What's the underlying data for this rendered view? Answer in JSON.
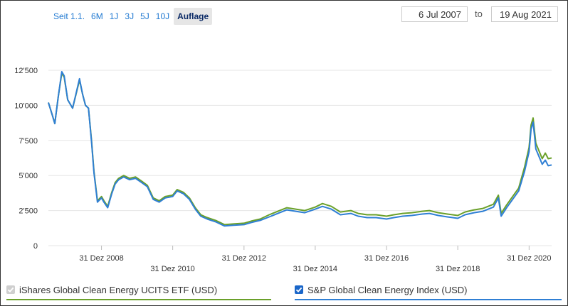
{
  "range_buttons": [
    "Seit 1.1.",
    "6M",
    "1J",
    "3J",
    "5J",
    "10J",
    "Auflage"
  ],
  "date_from": "6 Jul 2007",
  "date_sep": "to",
  "date_to": "19 Aug 2021",
  "legend": {
    "item1": "iShares Global Clean Energy UCITS ETF (USD)",
    "item2": "S&P Global Clean Energy Index (USD)"
  },
  "colors": {
    "series1": "#6aa02a",
    "series2": "#2f7fd4",
    "grid": "#e6e6e6"
  },
  "chart_data": {
    "type": "line",
    "y_ticks": [
      "0",
      "2'500",
      "5'000",
      "7'500",
      "10'000",
      "12'500"
    ],
    "y_tick_values": [
      0,
      2500,
      5000,
      7500,
      10000,
      12500
    ],
    "ylim": [
      0,
      12500
    ],
    "x_tick_labels": [
      "31 Dez 2008",
      "31 Dez 2010",
      "31 Dez 2012",
      "31 Dez 2014",
      "31 Dez 2016",
      "31 Dez 2018",
      "31 Dez 2020"
    ],
    "x_tick_dates": [
      "2008-12-31",
      "2010-12-31",
      "2012-12-31",
      "2014-12-31",
      "2016-12-31",
      "2018-12-31",
      "2020-12-31"
    ],
    "x_range": [
      "2007-07-06",
      "2021-08-19"
    ],
    "grid": true,
    "series": [
      {
        "name": "iShares Global Clean Energy UCITS ETF (USD)",
        "color": "#6aa02a",
        "points": [
          [
            "2007-07-06",
            10200
          ],
          [
            "2007-08-15",
            9300
          ],
          [
            "2007-09-10",
            8700
          ],
          [
            "2007-10-15",
            10600
          ],
          [
            "2007-11-20",
            12300
          ],
          [
            "2007-12-15",
            12000
          ],
          [
            "2008-01-20",
            10400
          ],
          [
            "2008-03-10",
            9800
          ],
          [
            "2008-05-20",
            11800
          ],
          [
            "2008-06-20",
            10800
          ],
          [
            "2008-07-20",
            10000
          ],
          [
            "2008-08-20",
            9800
          ],
          [
            "2008-09-20",
            7500
          ],
          [
            "2008-10-15",
            5300
          ],
          [
            "2008-11-20",
            3200
          ],
          [
            "2008-12-31",
            3500
          ],
          [
            "2009-01-25",
            3200
          ],
          [
            "2009-03-05",
            2800
          ],
          [
            "2009-04-15",
            3800
          ],
          [
            "2009-05-20",
            4500
          ],
          [
            "2009-06-25",
            4800
          ],
          [
            "2009-08-15",
            5000
          ],
          [
            "2009-10-15",
            4800
          ],
          [
            "2009-12-15",
            4900
          ],
          [
            "2010-02-15",
            4600
          ],
          [
            "2010-04-15",
            4300
          ],
          [
            "2010-06-15",
            3400
          ],
          [
            "2010-08-15",
            3200
          ],
          [
            "2010-10-15",
            3500
          ],
          [
            "2010-12-31",
            3600
          ],
          [
            "2011-02-15",
            4000
          ],
          [
            "2011-04-20",
            3800
          ],
          [
            "2011-06-20",
            3400
          ],
          [
            "2011-08-20",
            2700
          ],
          [
            "2011-10-15",
            2200
          ],
          [
            "2011-12-20",
            2000
          ],
          [
            "2012-03-15",
            1800
          ],
          [
            "2012-06-15",
            1500
          ],
          [
            "2012-09-15",
            1550
          ],
          [
            "2012-12-31",
            1600
          ],
          [
            "2013-03-15",
            1750
          ],
          [
            "2013-06-15",
            1900
          ],
          [
            "2013-09-15",
            2200
          ],
          [
            "2013-12-31",
            2500
          ],
          [
            "2014-03-15",
            2700
          ],
          [
            "2014-06-15",
            2600
          ],
          [
            "2014-09-15",
            2500
          ],
          [
            "2014-12-31",
            2750
          ],
          [
            "2015-03-15",
            3000
          ],
          [
            "2015-06-15",
            2800
          ],
          [
            "2015-09-15",
            2400
          ],
          [
            "2015-12-31",
            2500
          ],
          [
            "2016-03-15",
            2300
          ],
          [
            "2016-06-15",
            2200
          ],
          [
            "2016-09-15",
            2200
          ],
          [
            "2016-12-31",
            2100
          ],
          [
            "2017-03-15",
            2200
          ],
          [
            "2017-06-15",
            2300
          ],
          [
            "2017-09-15",
            2350
          ],
          [
            "2017-12-31",
            2450
          ],
          [
            "2018-03-15",
            2500
          ],
          [
            "2018-06-15",
            2350
          ],
          [
            "2018-09-15",
            2250
          ],
          [
            "2018-12-31",
            2150
          ],
          [
            "2019-03-15",
            2400
          ],
          [
            "2019-06-15",
            2550
          ],
          [
            "2019-09-15",
            2650
          ],
          [
            "2019-12-31",
            2950
          ],
          [
            "2020-02-20",
            3600
          ],
          [
            "2020-03-20",
            2300
          ],
          [
            "2020-05-15",
            2900
          ],
          [
            "2020-07-15",
            3500
          ],
          [
            "2020-09-15",
            4100
          ],
          [
            "2020-11-15",
            5600
          ],
          [
            "2020-12-31",
            7000
          ],
          [
            "2021-01-20",
            8600
          ],
          [
            "2021-02-10",
            9100
          ],
          [
            "2021-03-10",
            7300
          ],
          [
            "2021-04-15",
            6700
          ],
          [
            "2021-05-15",
            6200
          ],
          [
            "2021-06-15",
            6600
          ],
          [
            "2021-07-15",
            6200
          ],
          [
            "2021-08-19",
            6250
          ]
        ]
      },
      {
        "name": "S&P Global Clean Energy Index (USD)",
        "color": "#2f7fd4",
        "points": [
          [
            "2007-07-06",
            10200
          ],
          [
            "2007-08-15",
            9300
          ],
          [
            "2007-09-10",
            8700
          ],
          [
            "2007-10-15",
            10600
          ],
          [
            "2007-11-20",
            12400
          ],
          [
            "2007-12-15",
            12100
          ],
          [
            "2008-01-20",
            10400
          ],
          [
            "2008-03-10",
            9800
          ],
          [
            "2008-05-20",
            11900
          ],
          [
            "2008-06-20",
            10800
          ],
          [
            "2008-07-20",
            10000
          ],
          [
            "2008-08-20",
            9800
          ],
          [
            "2008-09-20",
            7400
          ],
          [
            "2008-10-15",
            5200
          ],
          [
            "2008-11-20",
            3100
          ],
          [
            "2008-12-31",
            3400
          ],
          [
            "2009-01-25",
            3100
          ],
          [
            "2009-03-05",
            2700
          ],
          [
            "2009-04-15",
            3700
          ],
          [
            "2009-05-20",
            4400
          ],
          [
            "2009-06-25",
            4700
          ],
          [
            "2009-08-15",
            4900
          ],
          [
            "2009-10-15",
            4700
          ],
          [
            "2009-12-15",
            4800
          ],
          [
            "2010-02-15",
            4500
          ],
          [
            "2010-04-15",
            4200
          ],
          [
            "2010-06-15",
            3300
          ],
          [
            "2010-08-15",
            3100
          ],
          [
            "2010-10-15",
            3400
          ],
          [
            "2010-12-31",
            3500
          ],
          [
            "2011-02-15",
            3900
          ],
          [
            "2011-04-20",
            3700
          ],
          [
            "2011-06-20",
            3300
          ],
          [
            "2011-08-20",
            2600
          ],
          [
            "2011-10-15",
            2100
          ],
          [
            "2011-12-20",
            1900
          ],
          [
            "2012-03-15",
            1700
          ],
          [
            "2012-06-15",
            1400
          ],
          [
            "2012-09-15",
            1450
          ],
          [
            "2012-12-31",
            1500
          ],
          [
            "2013-03-15",
            1650
          ],
          [
            "2013-06-15",
            1800
          ],
          [
            "2013-09-15",
            2050
          ],
          [
            "2013-12-31",
            2350
          ],
          [
            "2014-03-15",
            2550
          ],
          [
            "2014-06-15",
            2450
          ],
          [
            "2014-09-15",
            2350
          ],
          [
            "2014-12-31",
            2600
          ],
          [
            "2015-03-15",
            2800
          ],
          [
            "2015-06-15",
            2600
          ],
          [
            "2015-09-15",
            2200
          ],
          [
            "2015-12-31",
            2300
          ],
          [
            "2016-03-15",
            2100
          ],
          [
            "2016-06-15",
            2000
          ],
          [
            "2016-09-15",
            2000
          ],
          [
            "2016-12-31",
            1900
          ],
          [
            "2017-03-15",
            2000
          ],
          [
            "2017-06-15",
            2100
          ],
          [
            "2017-09-15",
            2150
          ],
          [
            "2017-12-31",
            2250
          ],
          [
            "2018-03-15",
            2300
          ],
          [
            "2018-06-15",
            2150
          ],
          [
            "2018-09-15",
            2050
          ],
          [
            "2018-12-31",
            1950
          ],
          [
            "2019-03-15",
            2200
          ],
          [
            "2019-06-15",
            2350
          ],
          [
            "2019-09-15",
            2450
          ],
          [
            "2019-12-31",
            2750
          ],
          [
            "2020-02-20",
            3400
          ],
          [
            "2020-03-20",
            2100
          ],
          [
            "2020-05-15",
            2700
          ],
          [
            "2020-07-15",
            3300
          ],
          [
            "2020-09-15",
            3900
          ],
          [
            "2020-11-15",
            5300
          ],
          [
            "2020-12-31",
            6700
          ],
          [
            "2021-01-20",
            8300
          ],
          [
            "2021-02-10",
            8800
          ],
          [
            "2021-03-10",
            6900
          ],
          [
            "2021-04-15",
            6300
          ],
          [
            "2021-05-15",
            5800
          ],
          [
            "2021-06-15",
            6100
          ],
          [
            "2021-07-15",
            5700
          ],
          [
            "2021-08-19",
            5750
          ]
        ]
      }
    ]
  }
}
